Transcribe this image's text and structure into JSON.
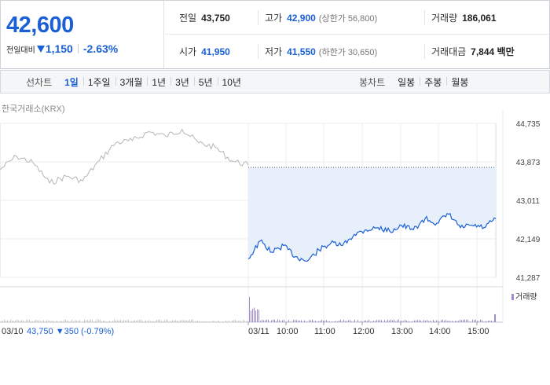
{
  "quote": {
    "price": "42,600",
    "change_label": "전일대비",
    "change_amount": "1,150",
    "change_rate": "-2.63%",
    "direction": "down",
    "down_color": "#1a5fd6",
    "stats": [
      {
        "label": "전일",
        "value": "43,750",
        "sub": ""
      },
      {
        "label": "고가",
        "value": "42,900",
        "sub": "(상한가 56,800)"
      },
      {
        "label": "거래량",
        "value": "186,061",
        "sub": ""
      },
      {
        "label": "시가",
        "value": "41,950",
        "sub": ""
      },
      {
        "label": "저가",
        "value": "41,550",
        "sub": "(하한가 30,650)"
      },
      {
        "label": "거래대금",
        "value": "7,844 백만",
        "sub": ""
      }
    ]
  },
  "tabs": {
    "line_title": "선차트",
    "line_tabs": [
      "1일",
      "1주일",
      "3개월",
      "1년",
      "3년",
      "5년",
      "10년"
    ],
    "line_active": "1일",
    "candle_title": "봉차트",
    "candle_tabs": [
      "일봉",
      "주봉",
      "월봉"
    ]
  },
  "chart": {
    "source": "한국거래소(KRX)",
    "volume_legend": "거래량",
    "prev_day_label": "03/10",
    "prev_day_summary": "43,750 ▼350 (-0.79%)",
    "colors": {
      "prev": "#b5b5b5",
      "today": "#1a5fd6",
      "fill": "#e6effa",
      "volume": "#a08ad0"
    }
  },
  "chart_data": {
    "type": "line",
    "ylim": [
      41287,
      44735
    ],
    "y_ticks": [
      "44,735",
      "43,873",
      "43,011",
      "42,149",
      "41,287"
    ],
    "y_tick_values": [
      44735,
      43873,
      43011,
      42149,
      41287
    ],
    "x_ticks": [
      "03/11",
      "10:00",
      "11:00",
      "12:00",
      "13:00",
      "14:00",
      "15:00"
    ],
    "previous_close": 43750,
    "series": [
      {
        "x": [
          0,
          2,
          4,
          6,
          8,
          10,
          12,
          14,
          16,
          18,
          20,
          22,
          24,
          26,
          28,
          30
        ],
        "values": [
          43700,
          44000,
          43850,
          43400,
          43550,
          43450,
          43900,
          44300,
          44350,
          44550,
          44450,
          44600,
          44300,
          44200,
          43900,
          43800
        ]
      },
      {
        "x": [
          0,
          2,
          4,
          6,
          8,
          10,
          12,
          14,
          16,
          18,
          20,
          22,
          24,
          26,
          28,
          30,
          32,
          34,
          36,
          38,
          40,
          42
        ],
        "values": [
          41700,
          42100,
          41850,
          42000,
          41750,
          41650,
          41900,
          42050,
          42000,
          42250,
          42350,
          42400,
          42320,
          42450,
          42350,
          42600,
          42500,
          42700,
          42400,
          42450,
          42400,
          42600
        ]
      }
    ]
  }
}
